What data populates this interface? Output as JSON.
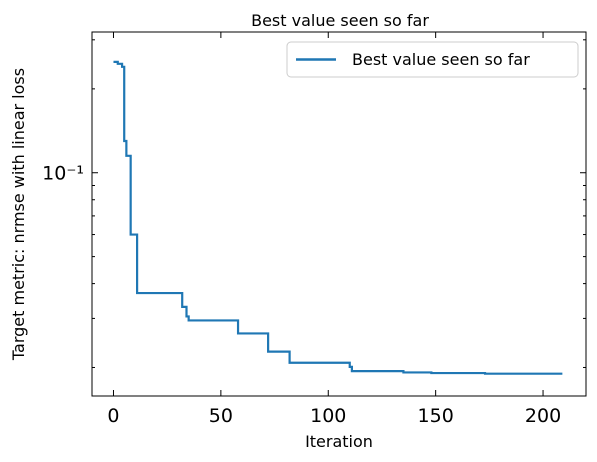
{
  "chart_data": {
    "type": "line",
    "title": "Best value seen so far",
    "xlabel": "Iteration",
    "ylabel": "Target metric: nrmse with linear loss",
    "xlim": [
      -10,
      220
    ],
    "ylim": [
      0.0158,
      0.32
    ],
    "yscale": "log",
    "x_ticks": [
      0,
      50,
      100,
      150,
      200
    ],
    "x_tick_labels": [
      "0",
      "50",
      "100",
      "150",
      "200"
    ],
    "y_major_ticks": [
      0.1
    ],
    "y_tick_labels": [
      "10⁻¹"
    ],
    "y_minor_ticks": [
      0.02,
      0.03,
      0.04,
      0.05,
      0.06,
      0.07,
      0.08,
      0.09,
      0.2,
      0.3
    ],
    "grid": false,
    "legend_position": "top-right",
    "series": [
      {
        "name": "Best value seen so far",
        "color": "#1f77b4",
        "step": true,
        "x": [
          0,
          2,
          3,
          4,
          5,
          6,
          7,
          8,
          11,
          31,
          32,
          33,
          34,
          35,
          57,
          58,
          71,
          72,
          81,
          82,
          108,
          110,
          111,
          134,
          135,
          147,
          148,
          172,
          173,
          209
        ],
        "y": [
          0.25,
          0.246,
          0.246,
          0.24,
          0.13,
          0.115,
          0.115,
          0.06,
          0.037,
          0.037,
          0.033,
          0.033,
          0.0305,
          0.0295,
          0.0295,
          0.0265,
          0.0265,
          0.0228,
          0.0228,
          0.0208,
          0.0208,
          0.0201,
          0.0194,
          0.0194,
          0.0192,
          0.0192,
          0.0191,
          0.0191,
          0.019,
          0.019
        ]
      }
    ]
  }
}
